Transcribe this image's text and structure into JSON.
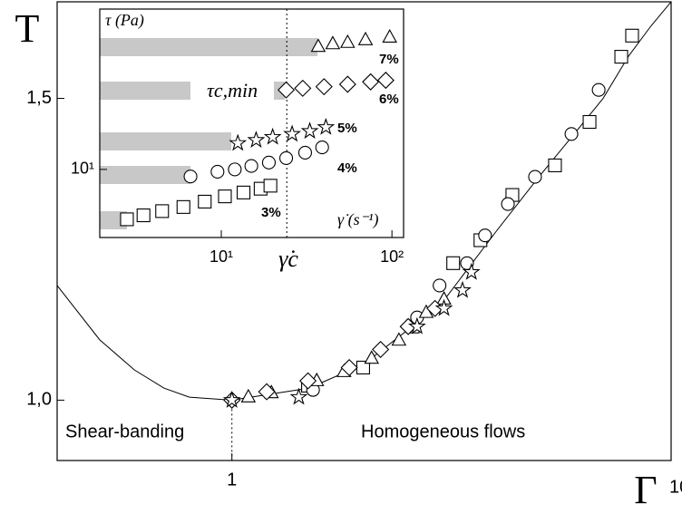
{
  "chart_data": [
    {
      "type": "scatter",
      "x_label": "Γ",
      "y_label": "T",
      "xlog": true,
      "xlim": [
        0.4,
        10
      ],
      "ylim": [
        0.9,
        1.66
      ],
      "xticks": [
        1,
        10
      ],
      "yticks": [
        {
          "value": 1.0,
          "label": "1,0"
        },
        {
          "value": 1.5,
          "label": "1,5"
        }
      ],
      "annotations": [
        "Shear-banding",
        "Homogeneous flows"
      ],
      "vline": {
        "x": 1,
        "y": 1
      },
      "series": [
        {
          "marker": "line",
          "color": "#000000",
          "x": [
            0.4,
            0.5,
            0.6,
            0.7,
            0.8,
            1,
            1.5,
            2,
            3,
            4,
            5,
            6,
            7,
            8,
            9,
            10
          ],
          "y": [
            1.19,
            1.1,
            1.05,
            1.02,
            1.005,
            1.0,
            1.02,
            1.06,
            1.16,
            1.28,
            1.37,
            1.44,
            1.5,
            1.57,
            1.62,
            1.66
          ]
        },
        {
          "marker": "square",
          "color": "#000000",
          "x": [
            8.15,
            7.7,
            6.52,
            5.44,
            4.35,
            3.68,
            3.19,
            2.58,
            1.99,
            1.49
          ],
          "y": [
            1.604,
            1.569,
            1.461,
            1.389,
            1.34,
            1.265,
            1.227,
            1.122,
            1.054,
            1.024
          ]
        },
        {
          "marker": "circle",
          "color": "#000000",
          "x": [
            6.84,
            5.93,
            4.9,
            4.25,
            3.77,
            3.43,
            2.97,
            2.64,
            1.53
          ],
          "y": [
            1.514,
            1.441,
            1.37,
            1.325,
            1.273,
            1.227,
            1.19,
            1.137,
            1.017
          ]
        },
        {
          "marker": "triangle",
          "color": "#000000",
          "x": [
            3.04,
            2.77,
            2.4,
            2.08,
            1.8,
            1.56,
            1.23,
            1.09
          ],
          "y": [
            1.167,
            1.145,
            1.099,
            1.069,
            1.047,
            1.032,
            1.012,
            1.005
          ]
        },
        {
          "marker": "diamond",
          "color": "#000000",
          "x": [
            2.9,
            2.52,
            2.18,
            1.85,
            1.49,
            1.2,
            1.0
          ],
          "y": [
            1.152,
            1.122,
            1.084,
            1.054,
            1.032,
            1.014,
            1.0
          ]
        },
        {
          "marker": "star",
          "color": "#000000",
          "x": [
            3.51,
            3.35,
            3.04,
            2.64,
            1.42,
            1.0
          ],
          "y": [
            1.212,
            1.182,
            1.152,
            1.122,
            1.005,
            1.0
          ]
        }
      ]
    },
    {
      "type": "scatter",
      "x_label": "γ̇ (s⁻¹)",
      "y_label": "τ (Pa)",
      "xlog": true,
      "ylog": true,
      "xlim": [
        1.94,
        117
      ],
      "ylim": [
        7.45,
        20
      ],
      "xticks": [
        {
          "value": 10,
          "label": "10¹"
        },
        {
          "value": 100,
          "label": "10²"
        }
      ],
      "yticks": [
        {
          "value": 10,
          "label": "10¹"
        }
      ],
      "annotations": [
        "τc,min",
        "γ̇c"
      ],
      "vline": {
        "x": 24.2
      },
      "series": [
        {
          "name": "7%",
          "marker": "triangle",
          "color": "#000000",
          "x": [
            37,
            45,
            55,
            70,
            97
          ],
          "y": [
            17.0,
            17.2,
            17.3,
            17.5,
            17.7
          ]
        },
        {
          "name": "6%",
          "marker": "diamond",
          "color": "#000000",
          "x": [
            24,
            30,
            40,
            55,
            75,
            92
          ],
          "y": [
            14.1,
            14.2,
            14.3,
            14.45,
            14.6,
            14.7
          ]
        },
        {
          "name": "5%",
          "marker": "star",
          "color": "#000000",
          "x": [
            12.5,
            16,
            20,
            26,
            33,
            41
          ],
          "y": [
            11.2,
            11.35,
            11.5,
            11.65,
            11.8,
            12.0
          ]
        },
        {
          "name": "4%",
          "marker": "circle",
          "color": "#000000",
          "x": [
            6.6,
            9.5,
            12,
            15,
            19,
            24,
            31,
            39
          ],
          "y": [
            9.7,
            9.9,
            10.0,
            10.15,
            10.3,
            10.5,
            10.75,
            11.0
          ]
        },
        {
          "name": "3%",
          "marker": "square",
          "color": "#000000",
          "x": [
            2.8,
            3.5,
            4.5,
            6,
            8,
            10.5,
            13.5,
            17,
            19.4
          ],
          "y": [
            8.06,
            8.2,
            8.35,
            8.5,
            8.7,
            8.9,
            9.05,
            9.2,
            9.32
          ]
        }
      ]
    }
  ]
}
